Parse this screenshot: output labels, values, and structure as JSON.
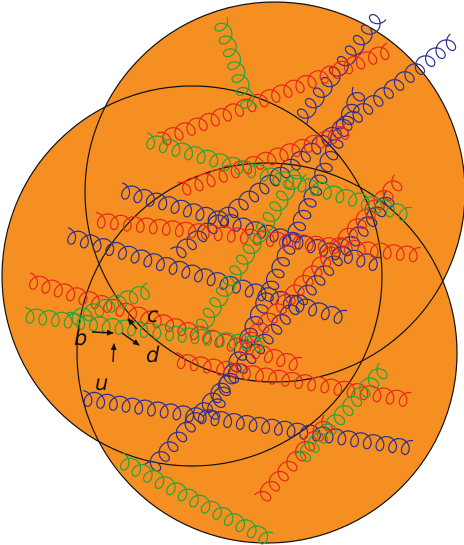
{
  "diagram": {
    "colors": {
      "nucleus_fill": "#F58F22",
      "nucleus_stroke": "#111111",
      "gluon_red": "#E8261C",
      "gluon_green": "#25A33A",
      "gluon_blue": "#2B2F8F",
      "arrow": "#111111"
    },
    "quark_labels": {
      "b": "b",
      "c": "c",
      "d": "d",
      "u": "u"
    }
  }
}
